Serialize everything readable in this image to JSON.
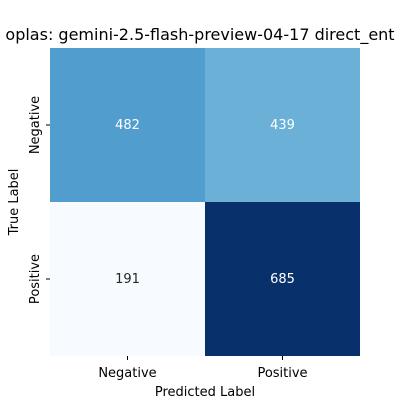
{
  "chart_data": {
    "type": "heatmap",
    "title": "oplas: gemini-2.5-flash-preview-04-17 direct_ent",
    "xlabel": "Predicted Label",
    "ylabel": "True Label",
    "x_categories": [
      "Negative",
      "Positive"
    ],
    "y_categories": [
      "Negative",
      "Positive"
    ],
    "values": [
      [
        482,
        439
      ],
      [
        191,
        685
      ]
    ],
    "colormap": "Blues",
    "cell_colors": [
      [
        "#519dcd",
        "#6bb0d6"
      ],
      [
        "#f7fbff",
        "#08306b"
      ]
    ],
    "cell_text_colors": [
      [
        "#ffffff",
        "#ffffff"
      ],
      [
        "#262626",
        "#ffffff"
      ]
    ],
    "colorbar": false
  }
}
